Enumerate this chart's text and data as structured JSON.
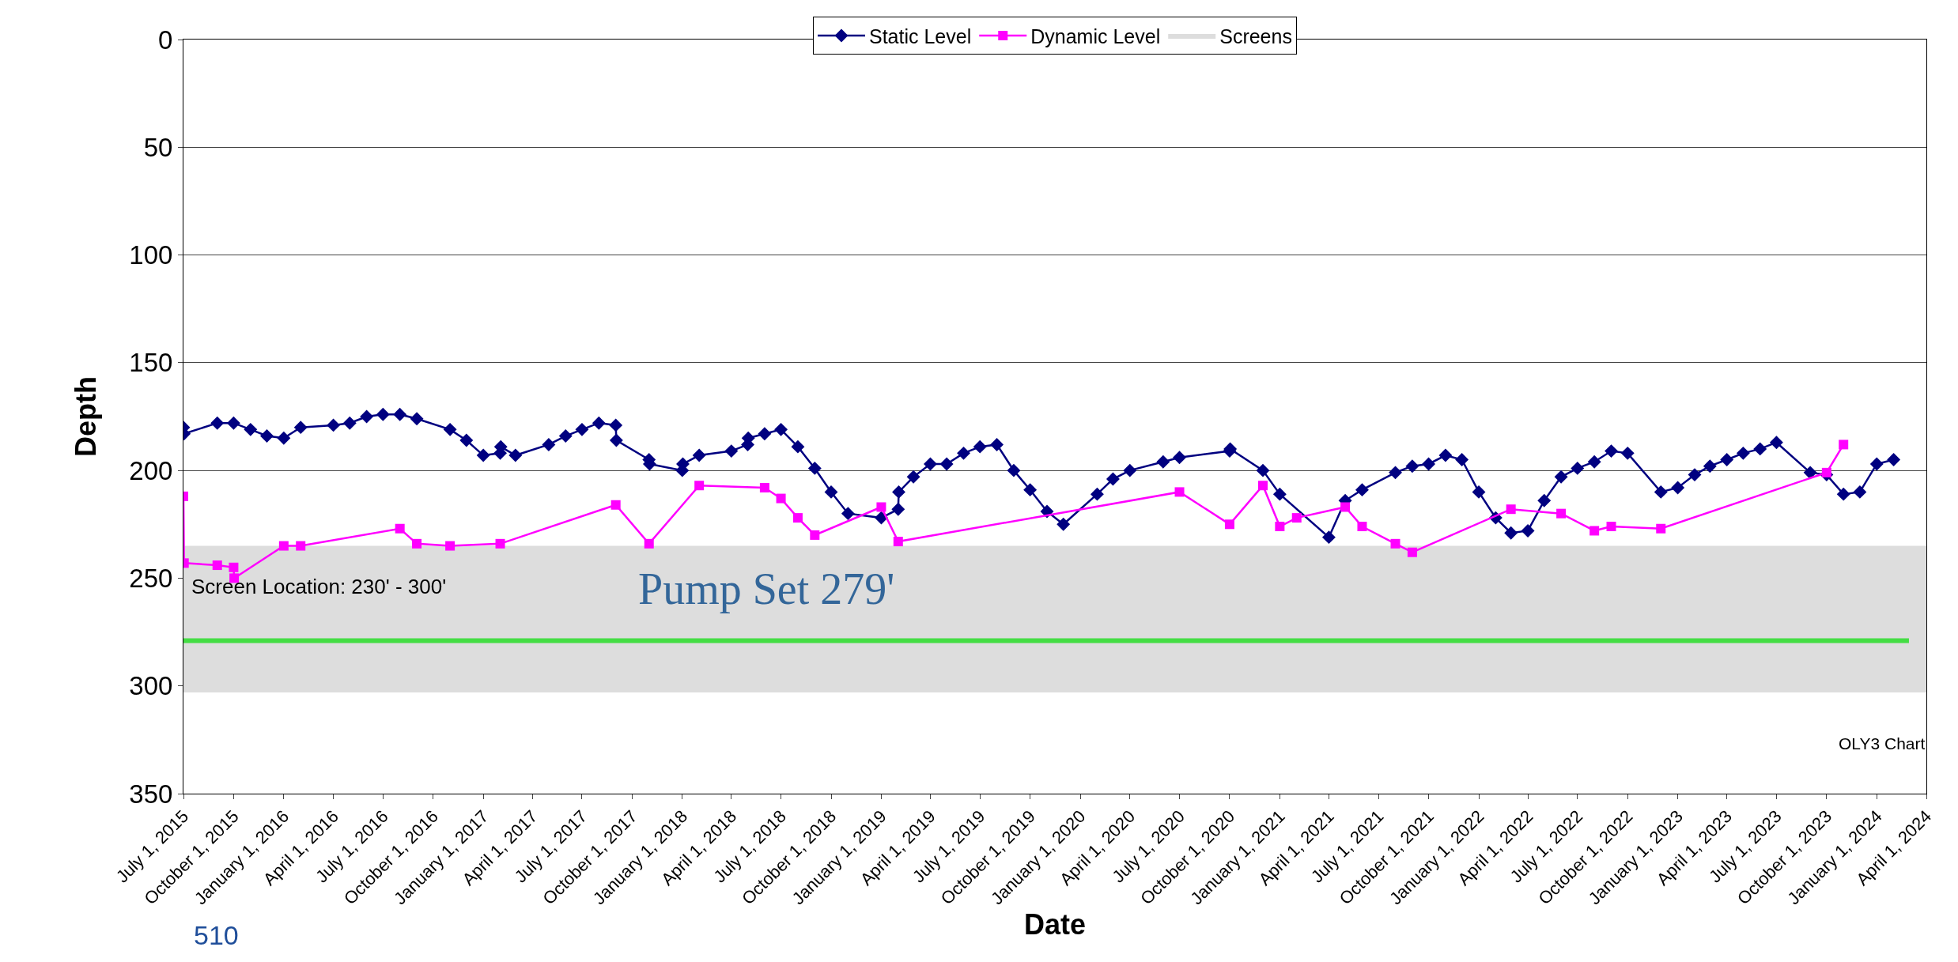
{
  "chart_data": {
    "type": "line",
    "xlabel": "Date",
    "ylabel": "Depth",
    "x": [
      "2015-07-01",
      "2015-07-02",
      "2015-09-01",
      "2015-10-01",
      "2015-11-01",
      "2015-12-01",
      "2016-01-01",
      "2016-02-01",
      "2016-04-01",
      "2016-05-01",
      "2016-06-01",
      "2016-07-01",
      "2016-08-01",
      "2016-09-01",
      "2016-11-01",
      "2016-12-01",
      "2017-01-01",
      "2017-02-01",
      "2017-02-02",
      "2017-03-01",
      "2017-05-01",
      "2017-06-01",
      "2017-07-01",
      "2017-08-01",
      "2017-09-01",
      "2017-09-02",
      "2017-11-01",
      "2017-11-02",
      "2018-01-01",
      "2018-01-02",
      "2018-02-01",
      "2018-04-01",
      "2018-05-01",
      "2018-05-02",
      "2018-06-01",
      "2018-07-01",
      "2018-08-01",
      "2018-09-01",
      "2018-10-01",
      "2018-11-01",
      "2019-01-01",
      "2019-02-01",
      "2019-02-02",
      "2019-03-01",
      "2019-04-01",
      "2019-05-01",
      "2019-06-01",
      "2019-07-01",
      "2019-08-01",
      "2019-09-01",
      "2019-10-01",
      "2019-11-01",
      "2019-12-01",
      "2020-02-01",
      "2020-03-01",
      "2020-04-01",
      "2020-06-01",
      "2020-07-01",
      "2020-10-01",
      "2020-10-02",
      "2020-12-01",
      "2021-01-01",
      "2021-04-01",
      "2021-05-01",
      "2021-06-01",
      "2021-08-01",
      "2021-09-01",
      "2021-10-01",
      "2021-11-01",
      "2021-12-01",
      "2022-01-01",
      "2022-02-01",
      "2022-03-01",
      "2022-04-01",
      "2022-05-01",
      "2022-06-01",
      "2022-07-01",
      "2022-08-01",
      "2022-09-01",
      "2022-10-01",
      "2022-12-01",
      "2023-01-01",
      "2023-02-01",
      "2023-03-01",
      "2023-04-01",
      "2023-05-01",
      "2023-06-01",
      "2023-07-01",
      "2023-09-01",
      "2023-10-01",
      "2023-11-01",
      "2023-12-01",
      "2024-01-01",
      "2024-02-01"
    ],
    "series": [
      {
        "name": "Static Level",
        "color": "#000080",
        "marker": "diamond",
        "values": [
          180,
          183,
          178,
          178,
          181,
          184,
          185,
          180,
          179,
          178,
          175,
          174,
          174,
          176,
          181,
          186,
          193,
          192,
          189,
          193,
          188,
          184,
          181,
          178,
          179,
          186,
          195,
          197,
          200,
          197,
          193,
          191,
          188,
          185,
          183,
          181,
          189,
          199,
          210,
          220,
          222,
          218,
          210,
          203,
          197,
          197,
          192,
          189,
          188,
          200,
          209,
          219,
          225,
          211,
          204,
          200,
          196,
          194,
          191,
          190,
          200,
          211,
          231,
          214,
          209,
          201,
          198,
          197,
          193,
          195,
          210,
          222,
          229,
          228,
          214,
          203,
          199,
          196,
          191,
          192,
          210,
          208,
          202,
          198,
          195,
          192,
          190,
          187,
          201,
          202,
          211,
          210,
          197,
          195
        ]
      },
      {
        "name": "Dynamic Level",
        "color": "#ff00ff",
        "marker": "square",
        "x": [
          "2015-07-01",
          "2015-07-02",
          "2015-09-01",
          "2015-10-01",
          "2015-10-02",
          "2016-01-01",
          "2016-02-01",
          "2016-08-01",
          "2016-09-01",
          "2016-11-01",
          "2017-02-01",
          "2017-09-01",
          "2017-11-01",
          "2018-02-01",
          "2018-06-01",
          "2018-07-01",
          "2018-08-01",
          "2018-09-01",
          "2019-01-01",
          "2019-02-01",
          "2020-07-01",
          "2020-10-01",
          "2020-12-01",
          "2021-01-01",
          "2021-02-01",
          "2021-05-01",
          "2021-06-01",
          "2021-08-01",
          "2021-09-01",
          "2022-03-01",
          "2022-06-01",
          "2022-08-01",
          "2022-09-01",
          "2022-12-01",
          "2023-10-01",
          "2023-11-01"
        ],
        "values": [
          212,
          243,
          244,
          245,
          250,
          235,
          235,
          227,
          234,
          235,
          234,
          216,
          234,
          207,
          208,
          213,
          222,
          230,
          217,
          233,
          210,
          225,
          207,
          226,
          222,
          217,
          226,
          234,
          238,
          218,
          220,
          228,
          226,
          227,
          201,
          188
        ]
      }
    ],
    "bands": [
      {
        "axis": "y",
        "from": 235,
        "to": 303,
        "color": "#dddddd",
        "label": "Screens"
      }
    ],
    "ref_lines": [
      {
        "axis": "y",
        "value": 279,
        "color": "#44dd44",
        "label": "Pump Set 279'"
      }
    ],
    "annotations": [
      {
        "text": "Screen Location: 230' - 300'",
        "x": "2015-07-01",
        "y": 254
      },
      "OLY3 Chart",
      "510"
    ],
    "xlim": [
      "2015-07-01",
      "2024-04-01"
    ],
    "ylim": [
      350,
      0
    ],
    "yticks": [
      0,
      50,
      100,
      150,
      200,
      250,
      300,
      350
    ],
    "xticks": [
      {
        "value": "2015-07-01",
        "label": "July 1, 2015"
      },
      {
        "value": "2015-10-01",
        "label": "October 1, 2015"
      },
      {
        "value": "2016-01-01",
        "label": "January 1, 2016"
      },
      {
        "value": "2016-04-01",
        "label": "April 1, 2016"
      },
      {
        "value": "2016-07-01",
        "label": "July 1, 2016"
      },
      {
        "value": "2016-10-01",
        "label": "October 1, 2016"
      },
      {
        "value": "2017-01-01",
        "label": "January 1, 2017"
      },
      {
        "value": "2017-04-01",
        "label": "April 1, 2017"
      },
      {
        "value": "2017-07-01",
        "label": "July 1, 2017"
      },
      {
        "value": "2017-10-01",
        "label": "October 1, 2017"
      },
      {
        "value": "2018-01-01",
        "label": "January 1, 2018"
      },
      {
        "value": "2018-04-01",
        "label": "April 1, 2018"
      },
      {
        "value": "2018-07-01",
        "label": "July 1, 2018"
      },
      {
        "value": "2018-10-01",
        "label": "October 1, 2018"
      },
      {
        "value": "2019-01-01",
        "label": "January 1, 2019"
      },
      {
        "value": "2019-04-01",
        "label": "April 1, 2019"
      },
      {
        "value": "2019-07-01",
        "label": "July 1, 2019"
      },
      {
        "value": "2019-10-01",
        "label": "October 1, 2019"
      },
      {
        "value": "2020-01-01",
        "label": "January 1, 2020"
      },
      {
        "value": "2020-04-01",
        "label": "April 1, 2020"
      },
      {
        "value": "2020-07-01",
        "label": "July 1, 2020"
      },
      {
        "value": "2020-10-01",
        "label": "October 1, 2020"
      },
      {
        "value": "2021-01-01",
        "label": "January 1, 2021"
      },
      {
        "value": "2021-04-01",
        "label": "April 1, 2021"
      },
      {
        "value": "2021-07-01",
        "label": "July 1, 2021"
      },
      {
        "value": "2021-10-01",
        "label": "October 1, 2021"
      },
      {
        "value": "2022-01-01",
        "label": "January 1, 2022"
      },
      {
        "value": "2022-04-01",
        "label": "April 1, 2022"
      },
      {
        "value": "2022-07-01",
        "label": "July 1, 2022"
      },
      {
        "value": "2022-10-01",
        "label": "October 1, 2022"
      },
      {
        "value": "2023-01-01",
        "label": "January 1, 2023"
      },
      {
        "value": "2023-04-01",
        "label": "April 1, 2023"
      },
      {
        "value": "2023-07-01",
        "label": "July 1, 2023"
      },
      {
        "value": "2023-10-01",
        "label": "October 1, 2023"
      },
      {
        "value": "2024-01-01",
        "label": "January 1, 2024"
      },
      {
        "value": "2024-04-01",
        "label": "April 1, 2024"
      }
    ],
    "grid": "y",
    "legend": "top",
    "line_style": "solid"
  }
}
